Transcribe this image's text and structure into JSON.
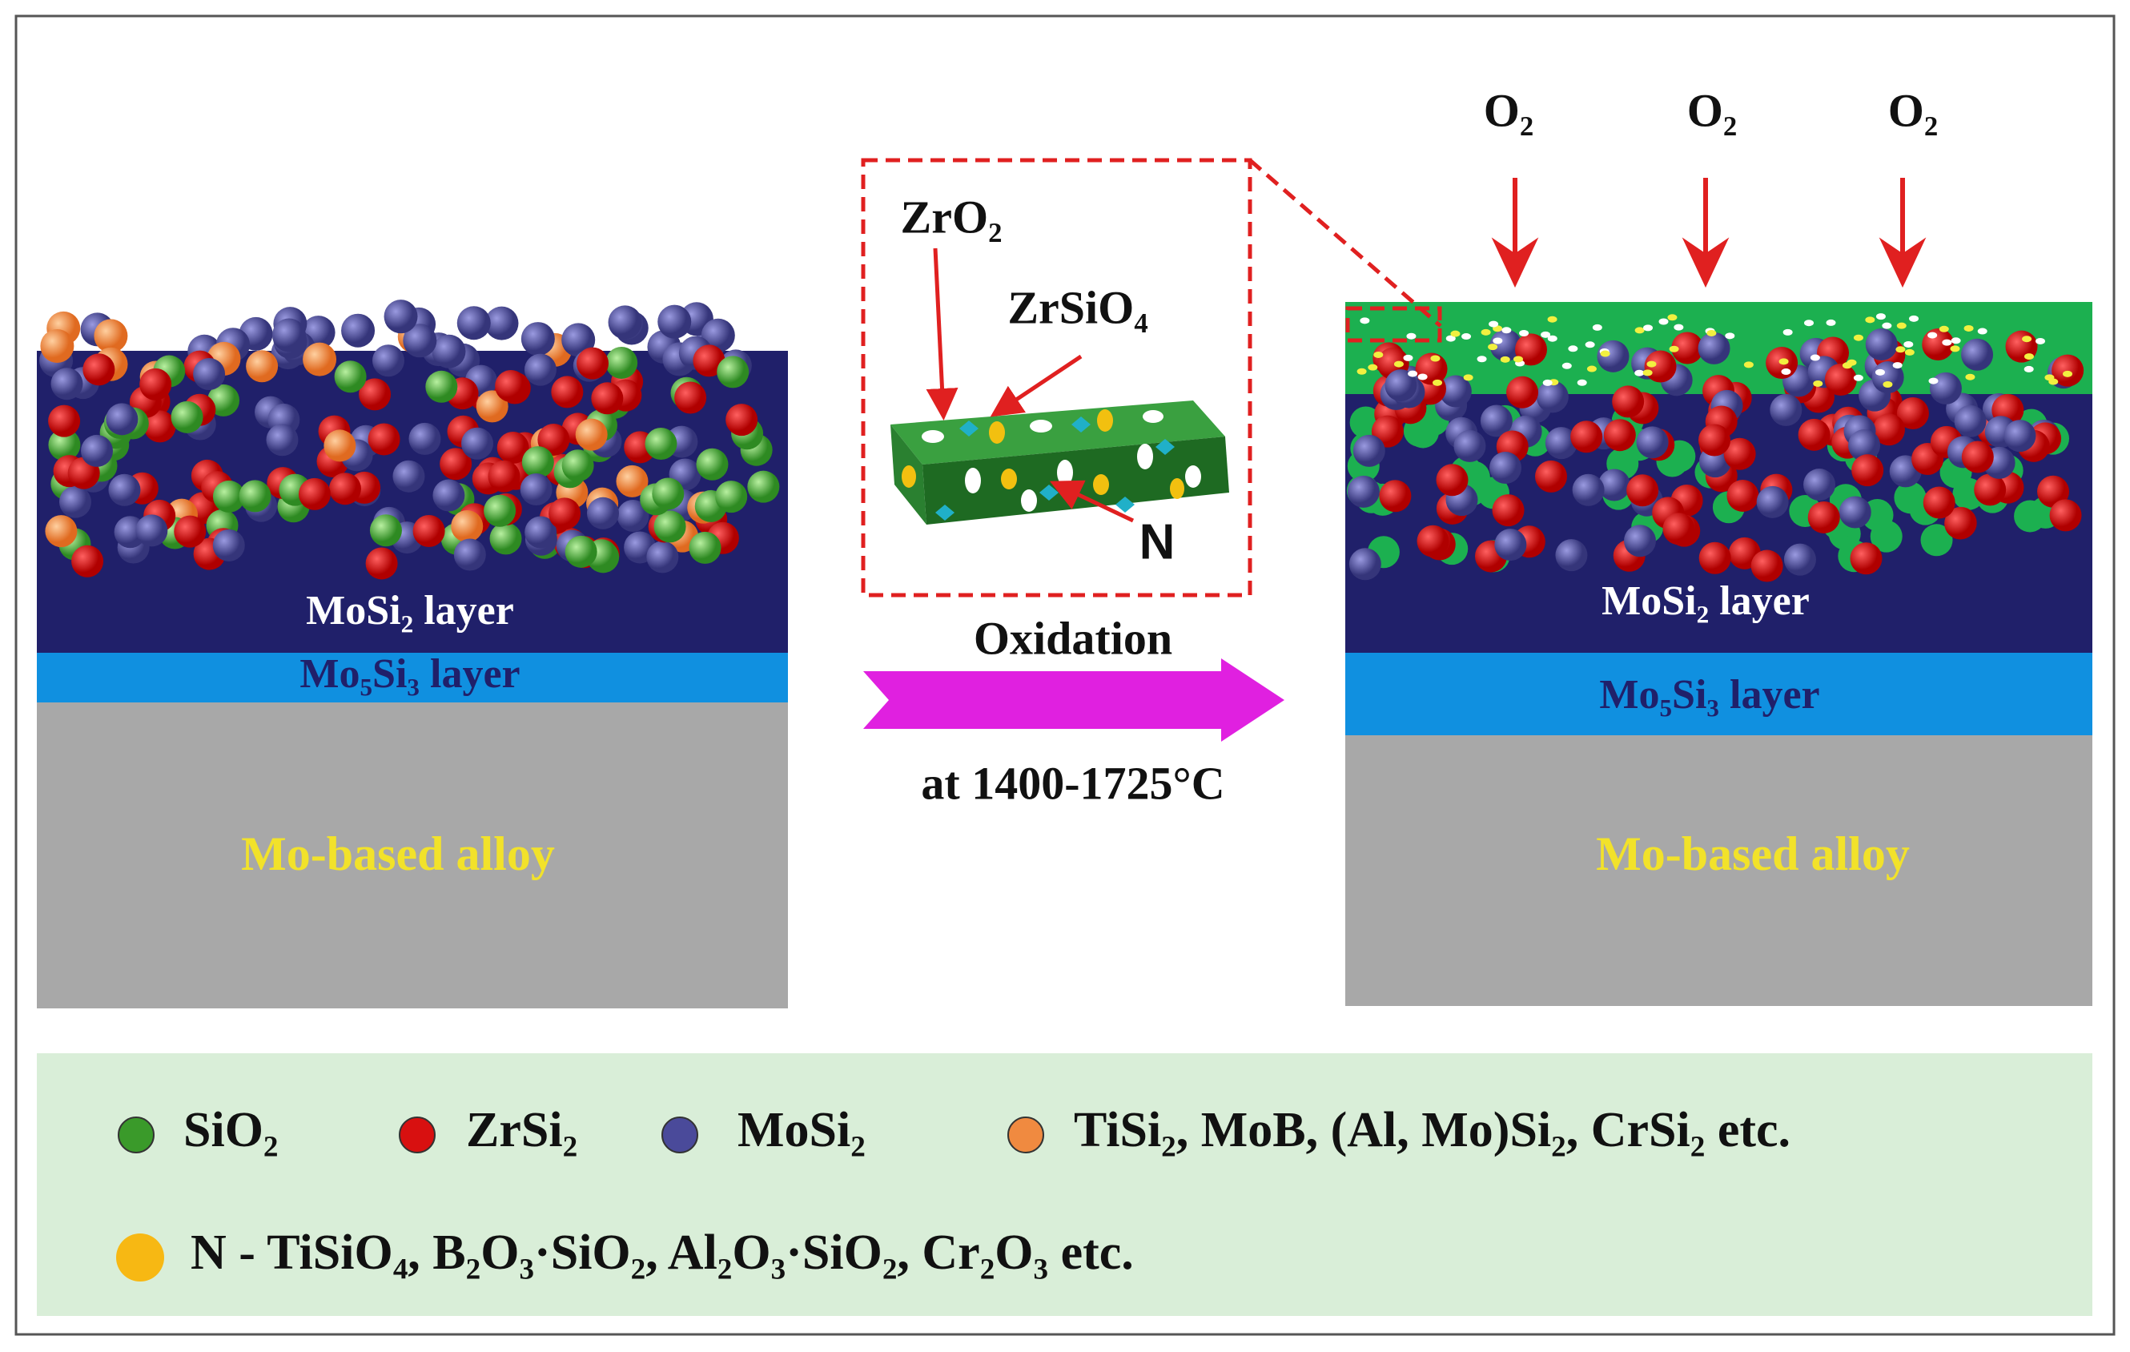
{
  "left_panel": {
    "layer_top": "MoSi₂ layer",
    "layer_middle": "Mo₅Si₃ layer",
    "substrate": "Mo-based alloy"
  },
  "right_panel": {
    "oxygen_labels": [
      "O₂",
      "O₂",
      "O₂"
    ],
    "layer_top": "MoSi₂ layer",
    "layer_middle": "Mo₅Si₃ layer",
    "substrate": "Mo-based alloy"
  },
  "inset": {
    "labels": [
      "ZrO₂",
      "ZrSiO₄",
      "N"
    ]
  },
  "process": {
    "label": "Oxidation",
    "condition": "at 1400-1725°C"
  },
  "legend": {
    "items": [
      {
        "label": "SiO₂",
        "color": "#3a9a2a"
      },
      {
        "label": "ZrSi₂",
        "color": "#d81010"
      },
      {
        "label": "MoSi₂",
        "color": "#4a4a9a"
      },
      {
        "label": "TiSi₂, MoB, (Al, Mo)Si₂, CrSi₂ etc.",
        "color": "#f08a40"
      },
      {
        "label": "N - TiSiO₄, B₂O₃·SiO₂, Al₂O₃·SiO₂, Cr₂O₃ etc.",
        "color": "#f7b813"
      }
    ]
  }
}
